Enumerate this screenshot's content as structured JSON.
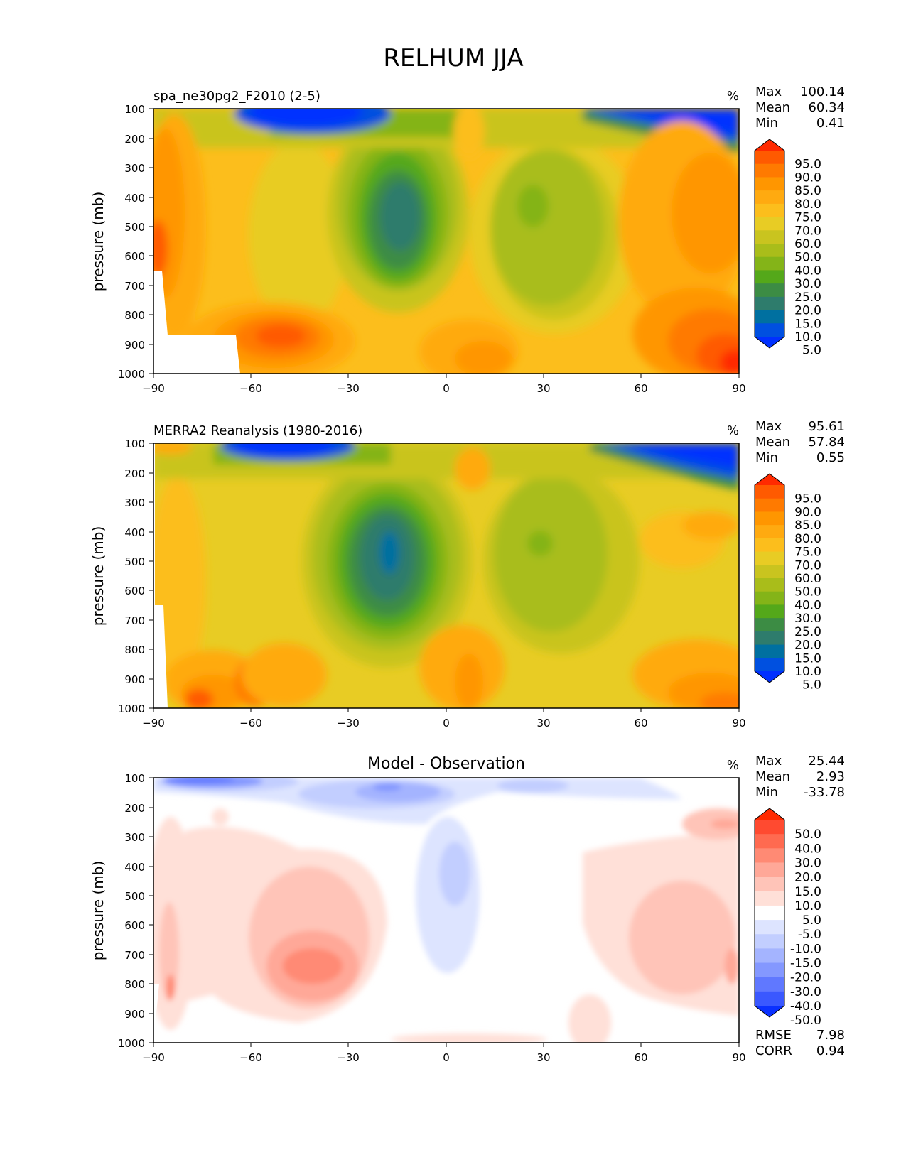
{
  "title": "RELHUM JJA",
  "chart_data": [
    {
      "type": "heatmap",
      "title": "spa_ne30pg2_F2010 (2-5)",
      "units": "%",
      "stats": [
        {
          "label": "Max",
          "value": "100.14"
        },
        {
          "label": "Mean",
          "value": "60.34"
        },
        {
          "label": "Min",
          "value": "0.41"
        }
      ],
      "ylabel": "pressure (mb)",
      "xticks": [
        "−90",
        "−60",
        "−30",
        "0",
        "30",
        "60",
        "90"
      ],
      "yticks": [
        "100",
        "200",
        "300",
        "400",
        "500",
        "600",
        "700",
        "800",
        "900",
        "1000"
      ],
      "xlim": [
        -90,
        90
      ],
      "ylim": [
        1000,
        100
      ],
      "colorbar": {
        "levels": [
          "95.0",
          "90.0",
          "85.0",
          "80.0",
          "75.0",
          "70.0",
          "60.0",
          "50.0",
          "40.0",
          "30.0",
          "25.0",
          "20.0",
          "15.0",
          "10.0",
          "5.0"
        ],
        "colors": [
          "#ff2a00",
          "#ff5a00",
          "#ff7a00",
          "#ff9600",
          "#ffaa10",
          "#fcbe1c",
          "#e8cc24",
          "#c9c41f",
          "#a9bd1a",
          "#84b418",
          "#54a81a",
          "#3c8c44",
          "#2e7c6c",
          "#0070a0",
          "#0050e0",
          "#0030ff"
        ]
      }
    },
    {
      "type": "heatmap",
      "title": "MERRA2 Reanalysis (1980-2016)",
      "units": "%",
      "stats": [
        {
          "label": "Max",
          "value": "95.61"
        },
        {
          "label": "Mean",
          "value": "57.84"
        },
        {
          "label": "Min",
          "value": "0.55"
        }
      ],
      "ylabel": "pressure (mb)",
      "xticks": [
        "−90",
        "−60",
        "−30",
        "0",
        "30",
        "60",
        "90"
      ],
      "yticks": [
        "100",
        "200",
        "300",
        "400",
        "500",
        "600",
        "700",
        "800",
        "900",
        "1000"
      ],
      "xlim": [
        -90,
        90
      ],
      "ylim": [
        1000,
        100
      ],
      "colorbar": {
        "levels": [
          "95.0",
          "90.0",
          "85.0",
          "80.0",
          "75.0",
          "70.0",
          "60.0",
          "50.0",
          "40.0",
          "30.0",
          "25.0",
          "20.0",
          "15.0",
          "10.0",
          "5.0"
        ],
        "colors": [
          "#ff2a00",
          "#ff5a00",
          "#ff7a00",
          "#ff9600",
          "#ffaa10",
          "#fcbe1c",
          "#e8cc24",
          "#c9c41f",
          "#a9bd1a",
          "#84b418",
          "#54a81a",
          "#3c8c44",
          "#2e7c6c",
          "#0070a0",
          "#0050e0",
          "#0030ff"
        ]
      }
    },
    {
      "type": "heatmap",
      "title": "Model - Observation",
      "units": "%",
      "stats": [
        {
          "label": "Max",
          "value": "25.44"
        },
        {
          "label": "Mean",
          "value": "2.93"
        },
        {
          "label": "Min",
          "value": "-33.78"
        }
      ],
      "extra_stats": [
        {
          "label": "RMSE",
          "value": "7.98"
        },
        {
          "label": "CORR",
          "value": "0.94"
        }
      ],
      "ylabel": "pressure (mb)",
      "xticks": [
        "−90",
        "−60",
        "−30",
        "0",
        "30",
        "60",
        "90"
      ],
      "yticks": [
        "100",
        "200",
        "300",
        "400",
        "500",
        "600",
        "700",
        "800",
        "900",
        "1000"
      ],
      "xlim": [
        -90,
        90
      ],
      "ylim": [
        1000,
        100
      ],
      "colorbar": {
        "levels": [
          "50.0",
          "40.0",
          "30.0",
          "20.0",
          "15.0",
          "10.0",
          "5.0",
          "-5.0",
          "-10.0",
          "-15.0",
          "-20.0",
          "-30.0",
          "-40.0",
          "-50.0"
        ],
        "colors": [
          "#ff2a00",
          "#ff4a30",
          "#ff6a50",
          "#ff8a74",
          "#ffa898",
          "#ffc4b8",
          "#ffe0d8",
          "#ffffff",
          "#dde4ff",
          "#c2ceff",
          "#a4b4ff",
          "#8498ff",
          "#6078ff",
          "#3a58ff",
          "#0a30ff"
        ]
      }
    }
  ]
}
